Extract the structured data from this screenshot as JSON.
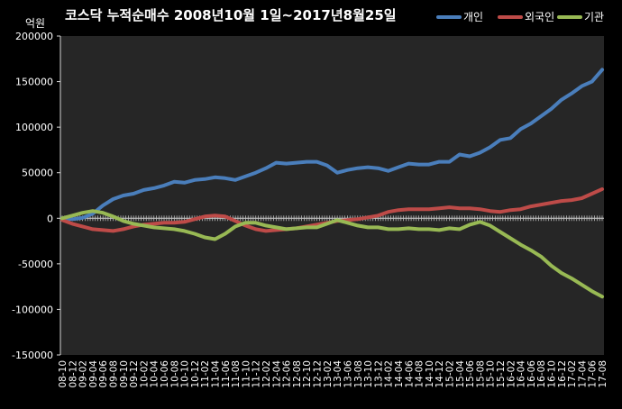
{
  "chart_data": {
    "type": "line",
    "title": "코스닥 누적순매수 2008년10월 1일~2017년8월25일",
    "unit_label": "억원",
    "xlabel": "",
    "ylabel": "",
    "ylim": [
      -150000,
      200000
    ],
    "yticks": [
      200000,
      150000,
      100000,
      50000,
      0,
      -50000,
      -100000,
      -150000
    ],
    "grid": false,
    "legend": "top-right",
    "categories": [
      "08-10",
      "08-12",
      "09-02",
      "09-04",
      "09-06",
      "09-08",
      "09-10",
      "09-12",
      "10-02",
      "10-04",
      "10-06",
      "10-08",
      "10-10",
      "10-12",
      "11-02",
      "11-04",
      "11-06",
      "11-08",
      "11-10",
      "11-12",
      "12-02",
      "12-04",
      "12-06",
      "12-08",
      "12-10",
      "12-12",
      "13-02",
      "13-04",
      "13-06",
      "13-08",
      "13-10",
      "13-12",
      "14-02",
      "14-04",
      "14-06",
      "14-08",
      "14-10",
      "14-12",
      "15-02",
      "15-04",
      "15-06",
      "15-08",
      "15-10",
      "15-12",
      "16-02",
      "16-04",
      "16-06",
      "16-08",
      "16-10",
      "16-12",
      "17-02",
      "17-04",
      "17-06",
      "17-08"
    ],
    "series": [
      {
        "name": "개인",
        "color": "#4a7ebb",
        "values": [
          0,
          -1000,
          500,
          5000,
          14000,
          21000,
          25000,
          27000,
          31000,
          33000,
          36000,
          40000,
          39000,
          42000,
          43000,
          45000,
          44000,
          42000,
          46000,
          50000,
          55000,
          61000,
          60000,
          61000,
          62000,
          62000,
          58000,
          50000,
          53000,
          55000,
          56000,
          55000,
          52000,
          56000,
          60000,
          59000,
          59000,
          62000,
          62000,
          70000,
          68000,
          72000,
          78000,
          86000,
          88000,
          98000,
          104000,
          112000,
          120000,
          130000,
          137000,
          145000,
          150000,
          163000
        ]
      },
      {
        "name": "외국인",
        "color": "#be4b48",
        "values": [
          -2000,
          -6000,
          -9000,
          -12000,
          -13000,
          -14000,
          -12000,
          -9000,
          -7000,
          -6000,
          -5000,
          -5000,
          -4000,
          -1000,
          2000,
          3000,
          2000,
          -3000,
          -8000,
          -12000,
          -14000,
          -13000,
          -12000,
          -11000,
          -9000,
          -7000,
          -5000,
          -3000,
          -2000,
          -1000,
          1000,
          3000,
          7000,
          9000,
          10000,
          10000,
          10000,
          11000,
          12000,
          11000,
          11000,
          10000,
          8000,
          7000,
          9000,
          10000,
          13000,
          15000,
          17000,
          19000,
          20000,
          22000,
          27000,
          32000
        ]
      },
      {
        "name": "기관",
        "color": "#98b954",
        "values": [
          0,
          3000,
          6000,
          8000,
          6000,
          2000,
          -3000,
          -6000,
          -8000,
          -10000,
          -11000,
          -12000,
          -14000,
          -17000,
          -21000,
          -23000,
          -17000,
          -9000,
          -5000,
          -5000,
          -8000,
          -10000,
          -12000,
          -11000,
          -10000,
          -10000,
          -6000,
          -2000,
          -5000,
          -8000,
          -10000,
          -10000,
          -12000,
          -12000,
          -11000,
          -12000,
          -12000,
          -13000,
          -11000,
          -12000,
          -7000,
          -4000,
          -8000,
          -15000,
          -22000,
          -29000,
          -35000,
          -42000,
          -52000,
          -60000,
          -66000,
          -73000,
          -80000,
          -86000
        ]
      }
    ]
  }
}
